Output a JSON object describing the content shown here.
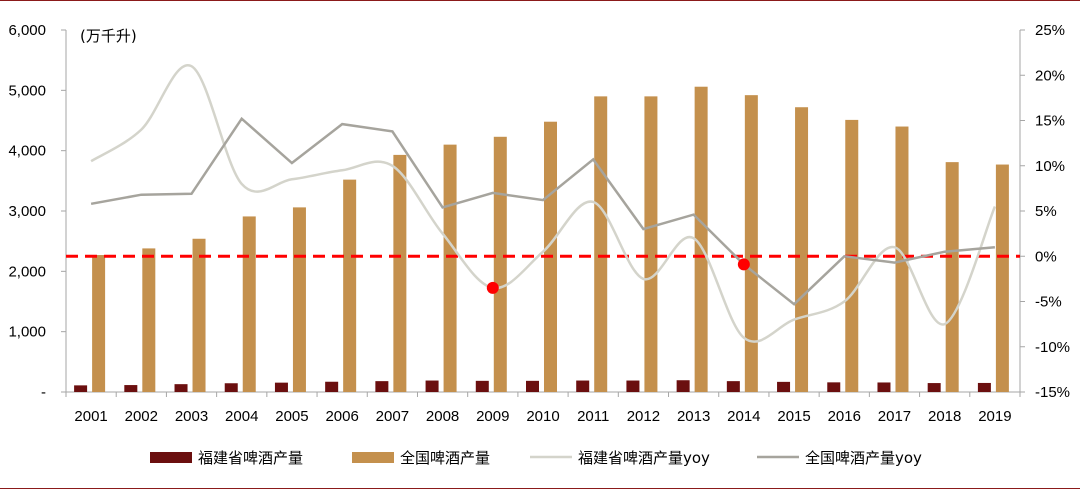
{
  "chart_data": {
    "type": "bar",
    "unit_label": "(万千升)",
    "categories": [
      "2001",
      "2002",
      "2003",
      "2004",
      "2005",
      "2006",
      "2007",
      "2008",
      "2009",
      "2010",
      "2011",
      "2012",
      "2013",
      "2014",
      "2015",
      "2016",
      "2017",
      "2018",
      "2019"
    ],
    "y_left": {
      "ylim": [
        0,
        6000
      ],
      "ticks": [
        "-",
        "1,000",
        "2,000",
        "3,000",
        "4,000",
        "5,000",
        "6,000"
      ],
      "tick_values": [
        0,
        1000,
        2000,
        3000,
        4000,
        5000,
        6000
      ]
    },
    "y_right": {
      "ylim": [
        -15,
        25
      ],
      "ticks": [
        "-15%",
        "-10%",
        "-5%",
        "0%",
        "5%",
        "10%",
        "15%",
        "20%",
        "25%"
      ],
      "tick_values": [
        -15,
        -10,
        -5,
        0,
        5,
        10,
        15,
        20,
        25
      ]
    },
    "series": [
      {
        "name": "福建省啤酒产量",
        "type": "bar",
        "axis": "left",
        "color": "#6b0f0f",
        "values": [
          110,
          115,
          130,
          145,
          155,
          170,
          180,
          190,
          185,
          185,
          190,
          190,
          195,
          180,
          168,
          160,
          158,
          148,
          150
        ]
      },
      {
        "name": "全国啤酒产量",
        "type": "bar",
        "axis": "left",
        "color": "#c4904d",
        "values": [
          2270,
          2380,
          2540,
          2910,
          3060,
          3520,
          3930,
          4100,
          4230,
          4480,
          4900,
          4900,
          5060,
          4920,
          4720,
          4510,
          4400,
          3810,
          3770
        ]
      },
      {
        "name": "福建省啤酒产量yoy",
        "type": "line",
        "axis": "right",
        "color": "#d4d4cb",
        "values": [
          10.5,
          14,
          21,
          8,
          8.5,
          9.5,
          10,
          2.5,
          -3.5,
          0.5,
          6,
          -2.5,
          2,
          -9,
          -7,
          -5,
          1,
          -7.5,
          5.5
        ]
      },
      {
        "name": "全国啤酒产量yoy",
        "type": "line",
        "axis": "right",
        "color": "#a6a49d",
        "values": [
          5.8,
          6.8,
          6.9,
          15.2,
          10.3,
          14.6,
          13.8,
          5.4,
          7.0,
          6.2,
          10.7,
          3.0,
          4.6,
          -0.9,
          -5.3,
          0,
          -0.7,
          0.5,
          1.0
        ]
      }
    ],
    "reference_line": {
      "value": 0,
      "axis": "right",
      "color": "#ff0000",
      "style": "dashed"
    },
    "highlight_points": [
      {
        "series": "福建省啤酒产量yoy",
        "category": "2009",
        "value": -3.5,
        "color": "#ff0000"
      },
      {
        "series": "全国啤酒产量yoy",
        "category": "2014",
        "value": -0.9,
        "color": "#ff0000"
      }
    ],
    "legend_position": "bottom",
    "grid": false
  }
}
